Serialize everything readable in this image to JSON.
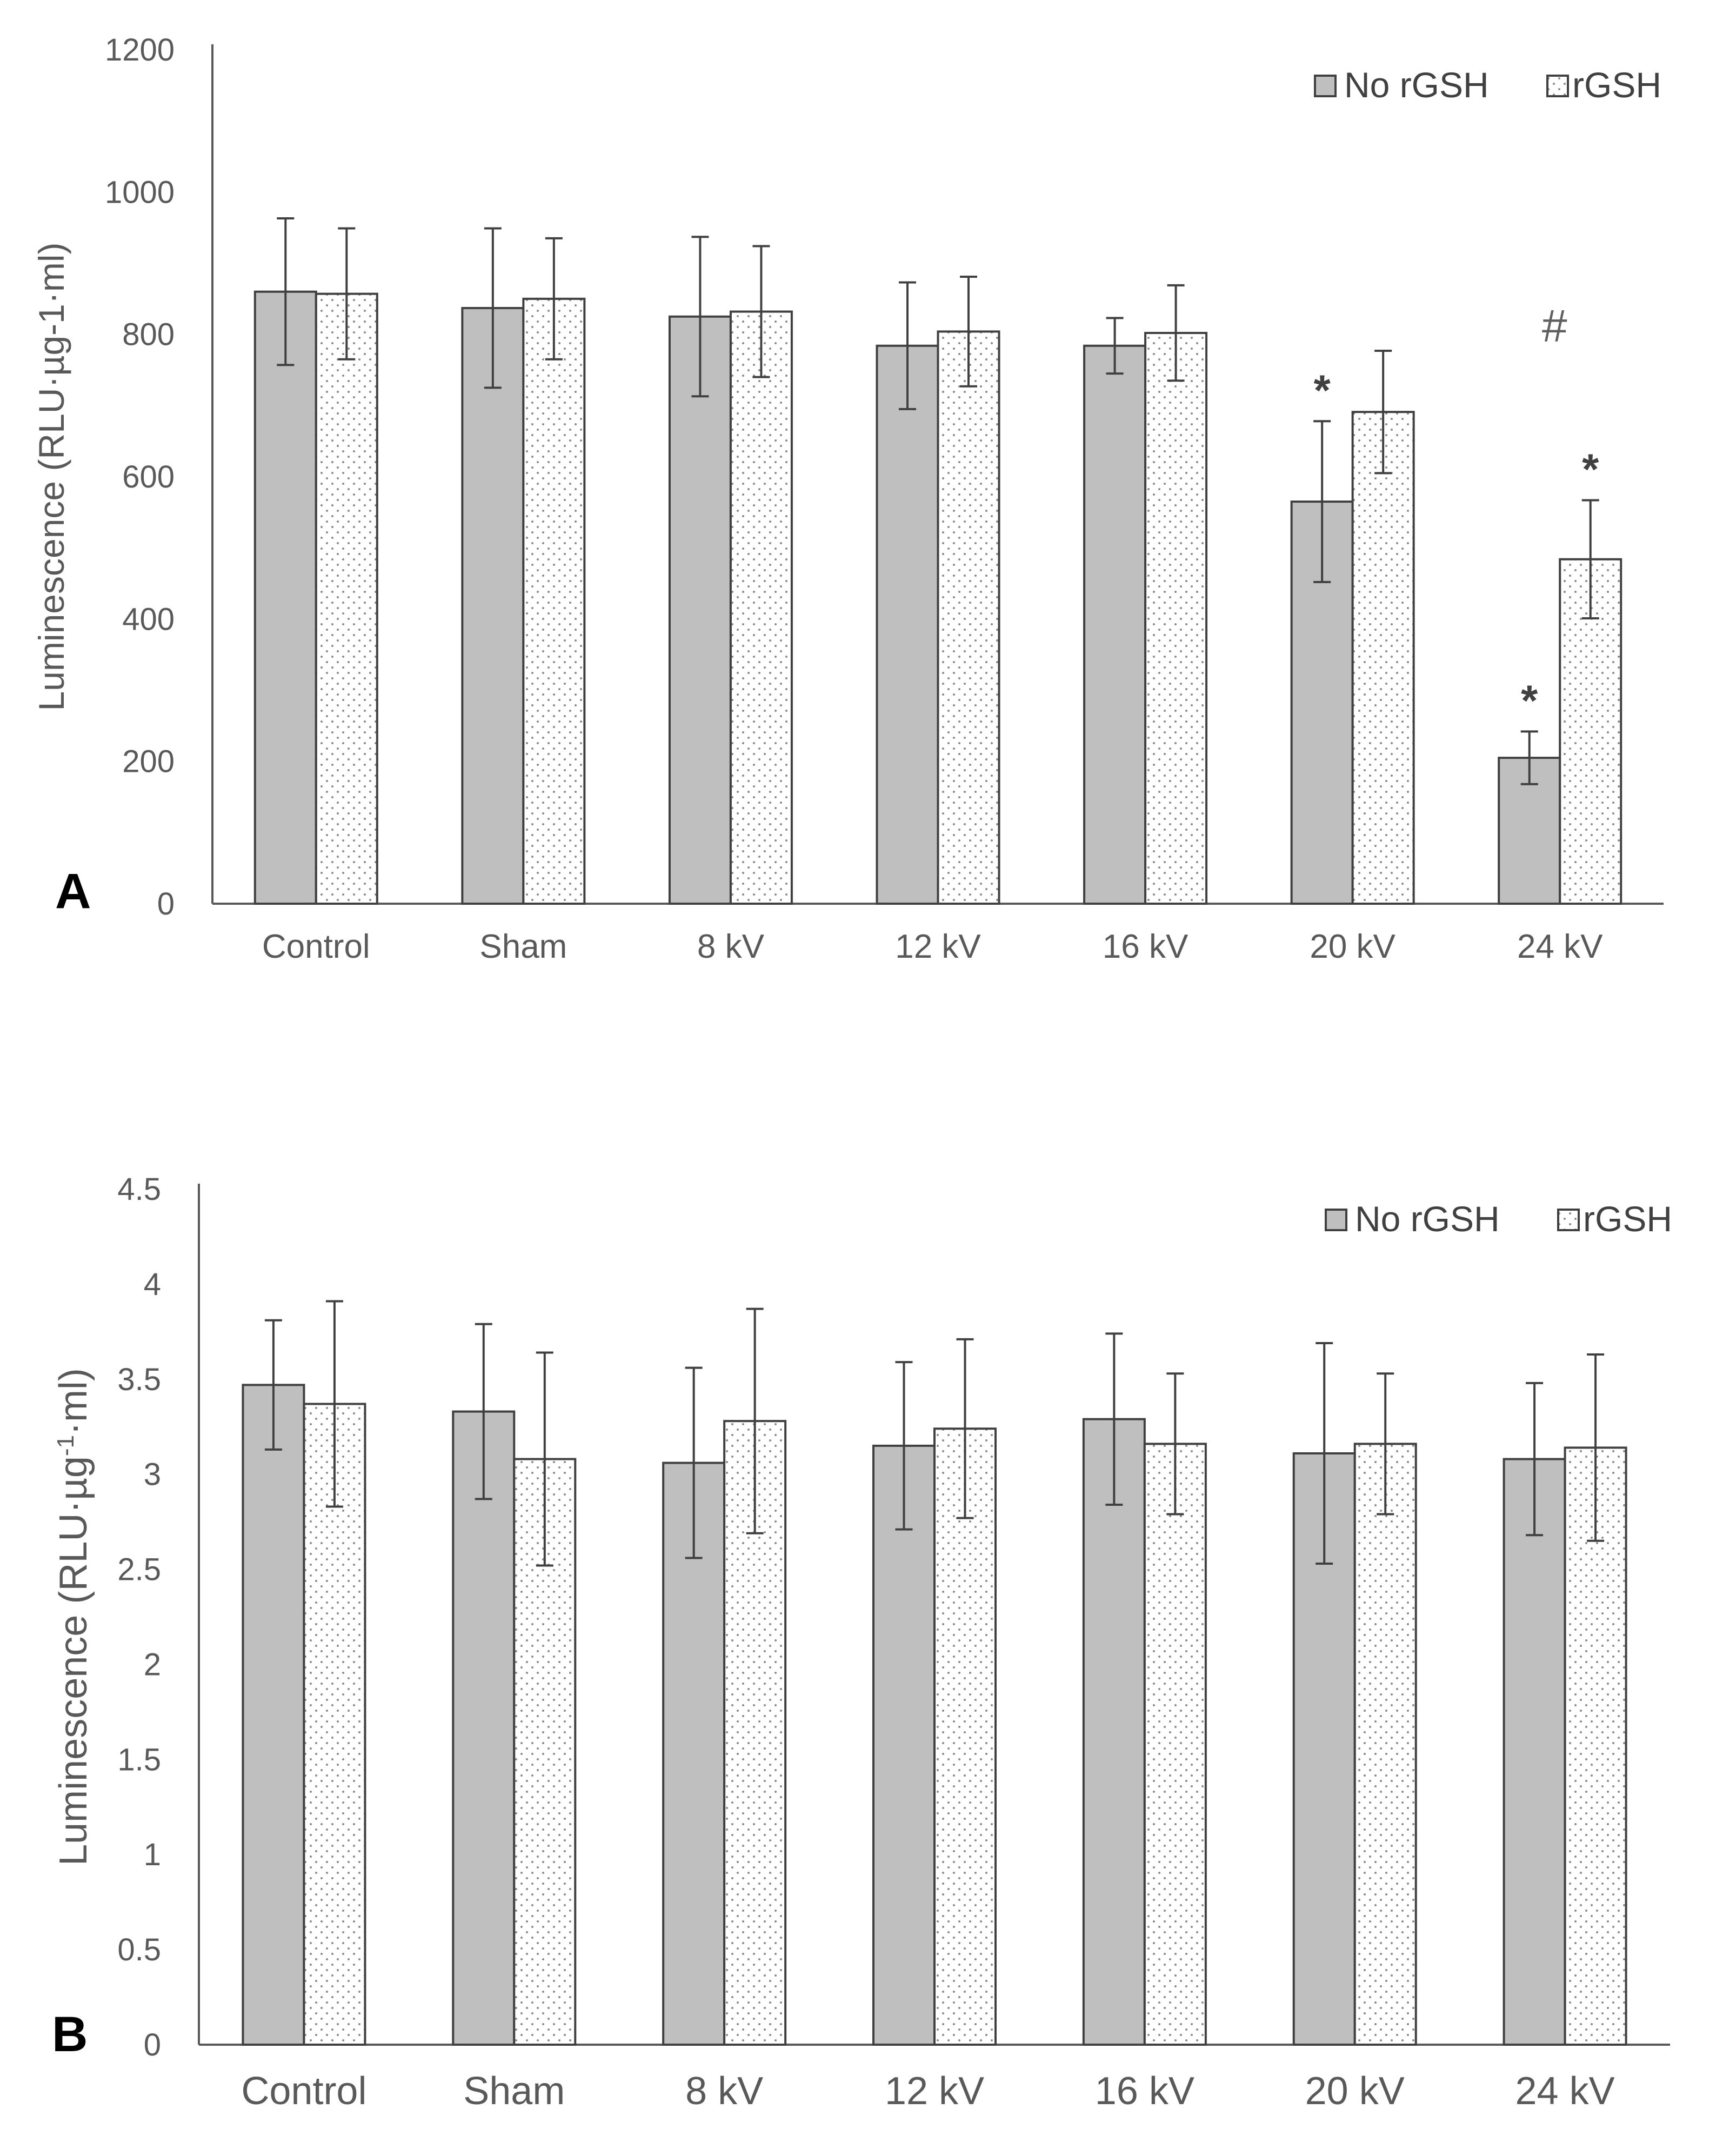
{
  "panels": [
    {
      "panel_label": "A",
      "ylabel": "Luminescence (RLU·µg-1·ml)",
      "yticks": [
        "0",
        "200",
        "400",
        "600",
        "800",
        "1000",
        "1200"
      ],
      "legend": [
        "No rGSH",
        "rGSH"
      ],
      "annotations": {
        "no_rgsh_20kv_marker": "*",
        "no_rgsh_24kv_marker": "*",
        "rgsh_24kv_marker": "*",
        "hash_marker": "#"
      }
    },
    {
      "panel_label": "B",
      "ylabel_main": "Luminescence (RLU·µg",
      "ylabel_sup": "-1",
      "ylabel_tail": "·ml)",
      "yticks": [
        "0",
        "0.5",
        "1",
        "1.5",
        "2",
        "2.5",
        "3",
        "3.5",
        "4",
        "4.5"
      ],
      "legend": [
        "No rGSH",
        "rGSH"
      ]
    }
  ],
  "chart_data": [
    {
      "type": "bar",
      "panel": "A",
      "categories": [
        "Control",
        "Sham",
        "8 kV",
        "12 kV",
        "16 kV",
        "20 kV",
        "24 kV"
      ],
      "ylabel": "Luminescence (RLU·µg-1·ml)",
      "ylim": [
        0,
        1200
      ],
      "grid": false,
      "legend_position": "top-right",
      "series": [
        {
          "name": "No rGSH",
          "values": [
            860,
            837,
            825,
            784,
            784,
            565,
            205
          ],
          "errors": [
            103,
            112,
            112,
            89,
            39,
            113,
            37
          ]
        },
        {
          "name": "rGSH",
          "values": [
            857,
            850,
            832,
            804,
            802,
            691,
            484
          ],
          "errors": [
            92,
            85,
            92,
            77,
            67,
            86,
            83
          ]
        }
      ],
      "colors": {
        "no_rgsh": "#bfbfbf",
        "rgsh": "#ffffff",
        "stroke": "#404040"
      }
    },
    {
      "type": "bar",
      "panel": "B",
      "categories": [
        "Control",
        "Sham",
        "8 kV",
        "12 kV",
        "16 kV",
        "20 kV",
        "24 kV"
      ],
      "ylabel": "Luminescence (RLU·µg-1·ml)",
      "ylim": [
        0,
        4.5
      ],
      "grid": false,
      "legend_position": "top-right",
      "series": [
        {
          "name": "No rGSH",
          "values": [
            3.47,
            3.33,
            3.06,
            3.15,
            3.29,
            3.11,
            3.08
          ],
          "errors": [
            0.34,
            0.46,
            0.5,
            0.44,
            0.45,
            0.58,
            0.4
          ]
        },
        {
          "name": "rGSH",
          "values": [
            3.37,
            3.08,
            3.28,
            3.24,
            3.16,
            3.16,
            3.14
          ],
          "errors": [
            0.54,
            0.56,
            0.59,
            0.47,
            0.37,
            0.37,
            0.49
          ]
        }
      ],
      "colors": {
        "no_rgsh": "#bfbfbf",
        "rgsh": "#ffffff",
        "stroke": "#404040"
      }
    }
  ]
}
